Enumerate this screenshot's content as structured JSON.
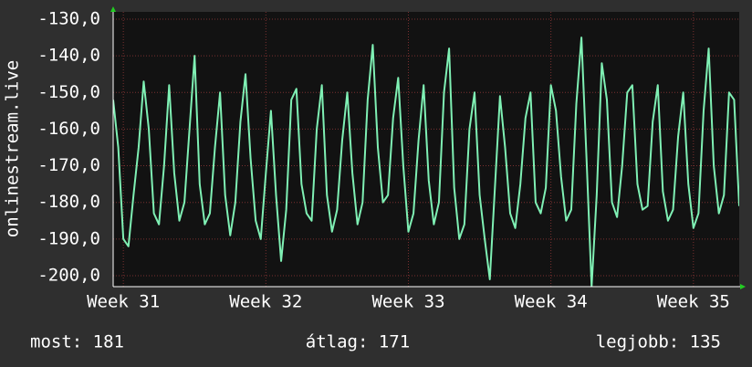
{
  "chart_data": {
    "type": "line",
    "y_label": "onlinestream.live",
    "series": [
      {
        "name": "onlinestream.live",
        "color": "#7ff0b4",
        "values": [
          -152,
          -165,
          -190,
          -192,
          -178,
          -165,
          -147,
          -160,
          -183,
          -186,
          -170,
          -148,
          -172,
          -185,
          -180,
          -160,
          -140,
          -175,
          -186,
          -183,
          -165,
          -150,
          -178,
          -189,
          -180,
          -158,
          -145,
          -168,
          -185,
          -190,
          -172,
          -155,
          -178,
          -196,
          -182,
          -152,
          -149,
          -175,
          -183,
          -185,
          -160,
          -148,
          -178,
          -188,
          -182,
          -163,
          -150,
          -172,
          -186,
          -180,
          -152,
          -137,
          -165,
          -180,
          -178,
          -157,
          -146,
          -170,
          -188,
          -183,
          -163,
          -148,
          -174,
          -186,
          -180,
          -150,
          -138,
          -176,
          -190,
          -186,
          -160,
          -150,
          -178,
          -190,
          -201,
          -176,
          -151,
          -165,
          -183,
          -187,
          -175,
          -157,
          -150,
          -180,
          -183,
          -176,
          -148,
          -155,
          -173,
          -185,
          -182,
          -153,
          -135,
          -168,
          -203,
          -178,
          -142,
          -152,
          -180,
          -184,
          -170,
          -150,
          -148,
          -175,
          -182,
          -181,
          -158,
          -148,
          -177,
          -185,
          -182,
          -162,
          -150,
          -175,
          -187,
          -183,
          -155,
          -138,
          -170,
          -183,
          -178,
          -150,
          -152,
          -181
        ]
      }
    ],
    "xlim": [
      0,
      123
    ],
    "xticks": [
      {
        "value": 2,
        "label": "Week 31"
      },
      {
        "value": 30,
        "label": "Week 32"
      },
      {
        "value": 58,
        "label": "Week 33"
      },
      {
        "value": 86,
        "label": "Week 34"
      },
      {
        "value": 114,
        "label": "Week 35"
      }
    ],
    "ylim": [
      -203,
      -128
    ],
    "yticks": [
      {
        "value": -130,
        "label": "-130,0"
      },
      {
        "value": -140,
        "label": "-140,0"
      },
      {
        "value": -150,
        "label": "-150,0"
      },
      {
        "value": -160,
        "label": "-160,0"
      },
      {
        "value": -170,
        "label": "-170,0"
      },
      {
        "value": -180,
        "label": "-180,0"
      },
      {
        "value": -190,
        "label": "-190,0"
      },
      {
        "value": -200,
        "label": "-200,0"
      }
    ],
    "grid": true,
    "footer": [
      "most: 181",
      "átlag: 171",
      "legjobb: 135"
    ]
  }
}
